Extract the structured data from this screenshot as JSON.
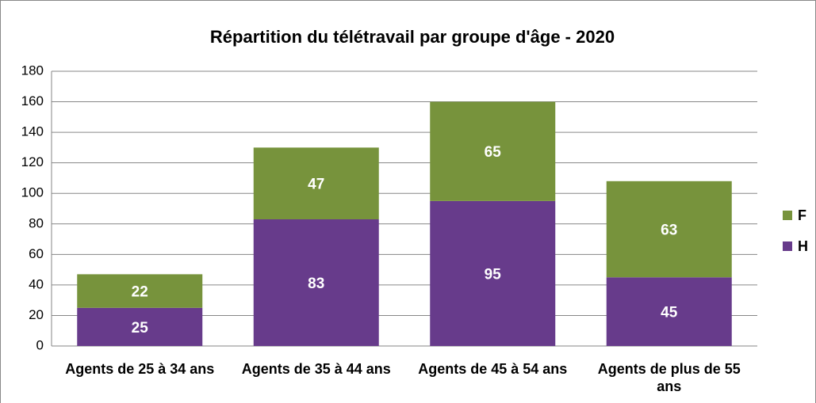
{
  "chart_data": {
    "type": "stacked_bar",
    "title": "Répartition du télétravail par groupe d'âge - 2020",
    "categories": [
      "Agents de 25 à 34 ans",
      "Agents de 35 à 44 ans",
      "Agents de 45 à 54 ans",
      "Agents de plus de 55 ans"
    ],
    "series": [
      {
        "name": "H",
        "color": "#673b8b",
        "values": [
          25,
          83,
          95,
          45
        ]
      },
      {
        "name": "F",
        "color": "#77933c",
        "values": [
          22,
          47,
          65,
          63
        ]
      }
    ],
    "ylim": [
      0,
      180
    ],
    "yticks": [
      0,
      20,
      40,
      60,
      80,
      100,
      120,
      140,
      160,
      180
    ],
    "grid": true,
    "legend": "right"
  }
}
